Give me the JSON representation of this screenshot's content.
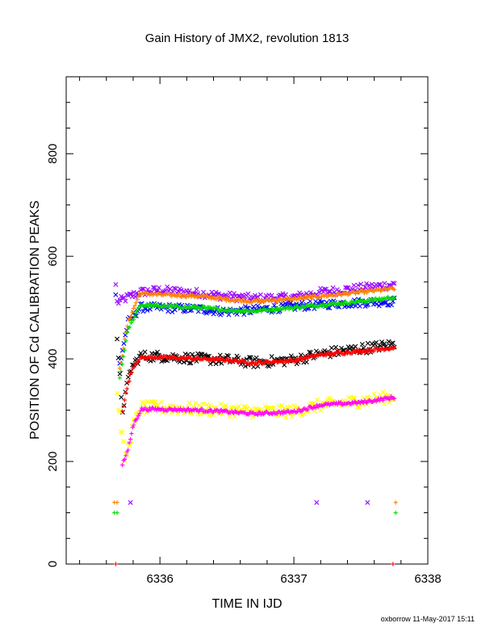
{
  "chart_data": {
    "type": "scatter",
    "title": "Gain History of JMX2, revolution 1813",
    "xlabel": "TIME IN IJD",
    "ylabel": "POSITION OF Cd CALIBRATION PEAKS",
    "xlim": [
      6335.3,
      6338.0
    ],
    "ylim": [
      0,
      950
    ],
    "xticks": [
      6336,
      6337,
      6338
    ],
    "yticks": [
      0,
      200,
      400,
      600,
      800
    ],
    "grid": false,
    "series": [
      {
        "color": "#9900ff",
        "marker": "x",
        "anchors": [
          [
            6335.68,
            510
          ],
          [
            6335.76,
            520
          ],
          [
            6335.85,
            530
          ],
          [
            6336.0,
            534
          ],
          [
            6336.3,
            528
          ],
          [
            6336.5,
            522
          ],
          [
            6336.7,
            518
          ],
          [
            6337.0,
            520
          ],
          [
            6337.2,
            530
          ],
          [
            6337.5,
            538
          ],
          [
            6337.75,
            545
          ]
        ],
        "noise": 8,
        "n": 200
      },
      {
        "color": "#0000ff",
        "marker": "x",
        "anchors": [
          [
            6335.7,
            390
          ],
          [
            6335.76,
            470
          ],
          [
            6335.85,
            500
          ],
          [
            6336.0,
            500
          ],
          [
            6336.3,
            497
          ],
          [
            6336.5,
            492
          ],
          [
            6336.7,
            495
          ],
          [
            6337.0,
            502
          ],
          [
            6337.2,
            506
          ],
          [
            6337.5,
            510
          ],
          [
            6337.75,
            512
          ]
        ],
        "noise": 8,
        "n": 200
      },
      {
        "color": "#ff8000",
        "marker": "+",
        "anchors": [
          [
            6335.7,
            380
          ],
          [
            6335.76,
            470
          ],
          [
            6335.85,
            528
          ],
          [
            6336.0,
            525
          ],
          [
            6336.3,
            522
          ],
          [
            6336.5,
            516
          ],
          [
            6336.7,
            512
          ],
          [
            6337.0,
            517
          ],
          [
            6337.2,
            522
          ],
          [
            6337.5,
            530
          ],
          [
            6337.75,
            537
          ]
        ],
        "noise": 3,
        "n": 220
      },
      {
        "color": "#00dd00",
        "marker": "+",
        "anchors": [
          [
            6335.7,
            360
          ],
          [
            6335.76,
            455
          ],
          [
            6335.85,
            505
          ],
          [
            6336.0,
            503
          ],
          [
            6336.3,
            500
          ],
          [
            6336.5,
            495
          ],
          [
            6336.7,
            493
          ],
          [
            6337.0,
            500
          ],
          [
            6337.2,
            505
          ],
          [
            6337.5,
            512
          ],
          [
            6337.75,
            520
          ]
        ],
        "noise": 3,
        "n": 220
      },
      {
        "color": "#000000",
        "marker": "x",
        "anchors": [
          [
            6335.68,
            430
          ],
          [
            6335.72,
            300
          ],
          [
            6335.78,
            380
          ],
          [
            6335.85,
            405
          ],
          [
            6336.0,
            405
          ],
          [
            6336.3,
            400
          ],
          [
            6336.5,
            398
          ],
          [
            6336.7,
            393
          ],
          [
            6337.0,
            398
          ],
          [
            6337.2,
            410
          ],
          [
            6337.5,
            420
          ],
          [
            6337.75,
            428
          ]
        ],
        "noise": 10,
        "n": 200
      },
      {
        "color": "#ff0000",
        "marker": "+",
        "anchors": [
          [
            6335.72,
            300
          ],
          [
            6335.76,
            350
          ],
          [
            6335.8,
            385
          ],
          [
            6335.85,
            402
          ],
          [
            6336.0,
            403
          ],
          [
            6336.3,
            400
          ],
          [
            6336.5,
            398
          ],
          [
            6336.7,
            392
          ],
          [
            6337.0,
            397
          ],
          [
            6337.2,
            408
          ],
          [
            6337.5,
            415
          ],
          [
            6337.75,
            422
          ]
        ],
        "noise": 3,
        "n": 240
      },
      {
        "color": "#ffff00",
        "marker": "x",
        "anchors": [
          [
            6335.68,
            330
          ],
          [
            6335.74,
            200
          ],
          [
            6335.8,
            270
          ],
          [
            6335.86,
            305
          ],
          [
            6336.0,
            305
          ],
          [
            6336.3,
            302
          ],
          [
            6336.5,
            300
          ],
          [
            6336.7,
            297
          ],
          [
            6337.0,
            298
          ],
          [
            6337.2,
            310
          ],
          [
            6337.5,
            318
          ],
          [
            6337.75,
            327
          ]
        ],
        "noise": 12,
        "n": 220
      },
      {
        "color": "#ff00ff",
        "marker": "+",
        "anchors": [
          [
            6335.72,
            195
          ],
          [
            6335.76,
            220
          ],
          [
            6335.8,
            270
          ],
          [
            6335.86,
            302
          ],
          [
            6336.0,
            302
          ],
          [
            6336.3,
            300
          ],
          [
            6336.5,
            297
          ],
          [
            6336.7,
            293
          ],
          [
            6337.0,
            297
          ],
          [
            6337.2,
            310
          ],
          [
            6337.5,
            315
          ],
          [
            6337.75,
            325
          ]
        ],
        "noise": 3,
        "n": 240
      }
    ],
    "points": [
      {
        "color": "#9900ff",
        "marker": "x",
        "x": 6335.67,
        "y": 545
      },
      {
        "color": "#0000ff",
        "marker": "x",
        "x": 6335.67,
        "y": 525
      },
      {
        "color": "#ff8000",
        "marker": "+",
        "x": 6335.66,
        "y": 120
      },
      {
        "color": "#ff8000",
        "marker": "+",
        "x": 6335.68,
        "y": 120
      },
      {
        "color": "#00dd00",
        "marker": "+",
        "x": 6335.66,
        "y": 100
      },
      {
        "color": "#00dd00",
        "marker": "+",
        "x": 6335.68,
        "y": 100
      },
      {
        "color": "#9900ff",
        "marker": "x",
        "x": 6335.78,
        "y": 120
      },
      {
        "color": "#9900ff",
        "marker": "x",
        "x": 6337.17,
        "y": 120
      },
      {
        "color": "#9900ff",
        "marker": "x",
        "x": 6337.55,
        "y": 120
      },
      {
        "color": "#ff8000",
        "marker": "+",
        "x": 6337.76,
        "y": 120
      },
      {
        "color": "#00dd00",
        "marker": "+",
        "x": 6337.76,
        "y": 100
      },
      {
        "color": "#ff0000",
        "marker": "+",
        "x": 6335.67,
        "y": 0
      },
      {
        "color": "#ff0000",
        "marker": "+",
        "x": 6337.74,
        "y": 0
      }
    ]
  },
  "footer": "oxborrow 11-May-2017 15:11"
}
